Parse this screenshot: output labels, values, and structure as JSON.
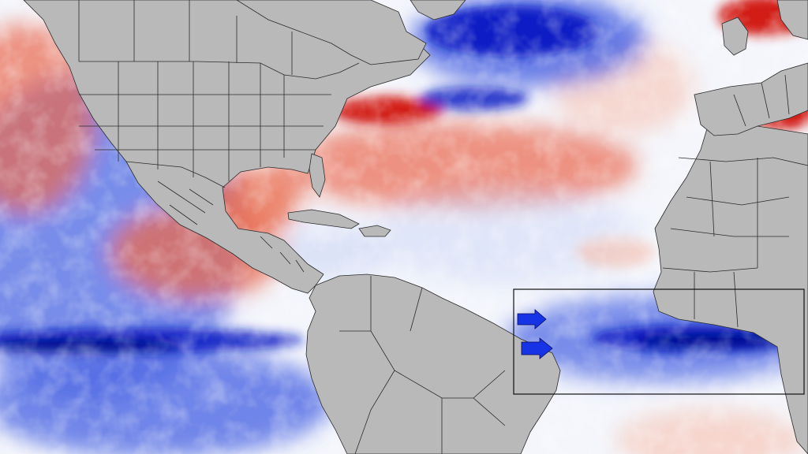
{
  "map": {
    "kind": "sea-surface-temperature-anomaly",
    "colors": {
      "land": "#b9b9b9",
      "borders": "#2b2b2b",
      "ocean_neutral": "#f4f6fc",
      "warm_light": "#f7c0ad",
      "warm": "#ea6a4e",
      "warm_strong": "#d21a12",
      "cool_light": "#c3cff4",
      "cool": "#5069e3",
      "cool_strong": "#0d1fc4",
      "cool_deep": "#04118a",
      "highlight_box": "#111111",
      "arrows": "#1733e6"
    },
    "icons": [
      "arrow-right-icon",
      "arrow-right-icon"
    ]
  }
}
